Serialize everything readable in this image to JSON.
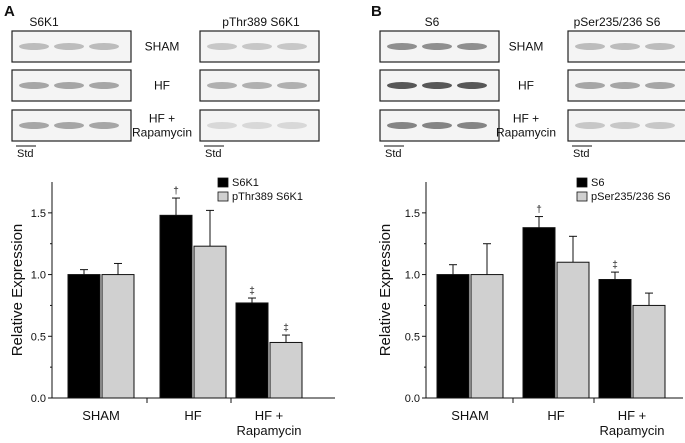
{
  "panels": [
    {
      "letter": "A",
      "blot": {
        "headers": [
          "S6K1",
          "pThr389 S6K1"
        ],
        "rows": [
          {
            "label": [
              "SHAM"
            ],
            "dark": [
              0.25,
              0.2
            ]
          },
          {
            "label": [
              "HF"
            ],
            "dark": [
              0.35,
              0.3
            ]
          },
          {
            "label": [
              "HF +",
              "Rapamycin"
            ],
            "dark": [
              0.35,
              0.12
            ]
          }
        ],
        "std_label": "Std"
      },
      "chart_data": {
        "type": "bar",
        "ylabel": "Relative Expression",
        "ylim": [
          0,
          1.75
        ],
        "yticks": [
          "0.0",
          "0.5",
          "1.0",
          "1.5"
        ],
        "categories": [
          [
            "SHAM"
          ],
          [
            "HF"
          ],
          [
            "HF +",
            "Rapamycin"
          ]
        ],
        "series": [
          {
            "name": "S6K1",
            "color": "#000000",
            "values": [
              1.0,
              1.48,
              0.77
            ],
            "errors": [
              0.04,
              0.14,
              0.04
            ],
            "sig": [
              "",
              "†",
              "‡"
            ]
          },
          {
            "name": "pThr389 S6K1",
            "color": "#d0d0d0",
            "values": [
              1.0,
              1.23,
              0.45
            ],
            "errors": [
              0.09,
              0.29,
              0.06
            ],
            "sig": [
              "",
              "",
              "‡"
            ]
          }
        ],
        "legend": "top-right"
      }
    },
    {
      "letter": "B",
      "blot": {
        "headers": [
          "S6",
          "pSer235/236 S6"
        ],
        "rows": [
          {
            "label": [
              "SHAM"
            ],
            "dark": [
              0.45,
              0.25
            ]
          },
          {
            "label": [
              "HF"
            ],
            "dark": [
              0.7,
              0.35
            ]
          },
          {
            "label": [
              "HF +",
              "Rapamycin"
            ],
            "dark": [
              0.5,
              0.2
            ]
          }
        ],
        "std_label": "Std"
      },
      "chart_data": {
        "type": "bar",
        "ylabel": "Relative Expression",
        "ylim": [
          0,
          1.75
        ],
        "yticks": [
          "0.0",
          "0.5",
          "1.0",
          "1.5"
        ],
        "categories": [
          [
            "SHAM"
          ],
          [
            "HF"
          ],
          [
            "HF +",
            "Rapamycin"
          ]
        ],
        "series": [
          {
            "name": "S6",
            "color": "#000000",
            "values": [
              1.0,
              1.38,
              0.96
            ],
            "errors": [
              0.08,
              0.09,
              0.06
            ],
            "sig": [
              "",
              "†",
              "‡"
            ]
          },
          {
            "name": "pSer235/236 S6",
            "color": "#d0d0d0",
            "values": [
              1.0,
              1.1,
              0.75
            ],
            "errors": [
              0.25,
              0.21,
              0.1
            ],
            "sig": [
              "",
              "",
              ""
            ]
          }
        ],
        "legend": "top-right"
      }
    }
  ]
}
